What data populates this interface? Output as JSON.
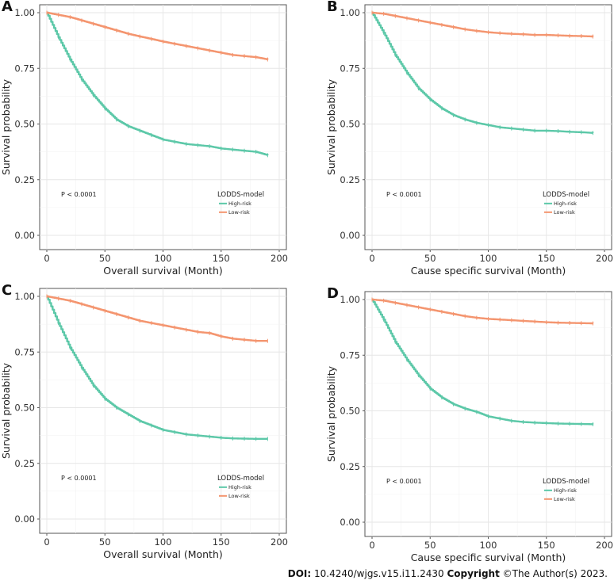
{
  "footer": {
    "doi_label": "DOI:",
    "doi_value": "10.4240/wjgs.v15.i11.2430",
    "copyright_label": "Copyright",
    "copyright_text": "©The Author(s) 2023."
  },
  "colors": {
    "high_risk": "#5CC8A8",
    "low_risk": "#F4956F"
  },
  "chart_data": [
    {
      "panel": "A",
      "type": "line",
      "title": "",
      "xlabel": "Overall survival (Month)",
      "ylabel": "Survival probability",
      "xlim": [
        0,
        200
      ],
      "ylim": [
        0,
        1
      ],
      "xticks": [
        "0",
        "50",
        "100",
        "150",
        "200"
      ],
      "yticks": [
        "0.00",
        "0.25",
        "0.50",
        "0.75",
        "1.00"
      ],
      "p_value": "P < 0.0001",
      "legend_title": "LODDS-model",
      "series": [
        {
          "name": "High-risk",
          "x": [
            0,
            10,
            20,
            30,
            40,
            50,
            60,
            70,
            80,
            90,
            100,
            110,
            120,
            130,
            140,
            150,
            160,
            170,
            180,
            190
          ],
          "values": [
            1.0,
            0.89,
            0.79,
            0.7,
            0.63,
            0.57,
            0.52,
            0.49,
            0.47,
            0.45,
            0.43,
            0.42,
            0.41,
            0.405,
            0.4,
            0.39,
            0.385,
            0.38,
            0.375,
            0.36
          ]
        },
        {
          "name": "Low-risk",
          "x": [
            0,
            10,
            20,
            30,
            40,
            50,
            60,
            70,
            80,
            90,
            100,
            110,
            120,
            130,
            140,
            150,
            160,
            170,
            180,
            190
          ],
          "values": [
            1.0,
            0.99,
            0.98,
            0.965,
            0.95,
            0.935,
            0.92,
            0.905,
            0.893,
            0.882,
            0.87,
            0.86,
            0.85,
            0.84,
            0.83,
            0.82,
            0.81,
            0.805,
            0.8,
            0.79
          ]
        }
      ]
    },
    {
      "panel": "B",
      "type": "line",
      "title": "",
      "xlabel": "Cause specific survival (Month)",
      "ylabel": "Survival probability",
      "xlim": [
        0,
        200
      ],
      "ylim": [
        0,
        1
      ],
      "xticks": [
        "0",
        "50",
        "100",
        "150",
        "200"
      ],
      "yticks": [
        "0.00",
        "0.25",
        "0.50",
        "0.75",
        "1.00"
      ],
      "p_value": "P < 0.0001",
      "legend_title": "LODDS-model",
      "series": [
        {
          "name": "High-risk",
          "x": [
            0,
            10,
            20,
            30,
            40,
            50,
            60,
            70,
            80,
            90,
            100,
            110,
            120,
            130,
            140,
            150,
            160,
            170,
            180,
            190
          ],
          "values": [
            1.0,
            0.91,
            0.81,
            0.73,
            0.66,
            0.61,
            0.57,
            0.54,
            0.52,
            0.505,
            0.495,
            0.485,
            0.48,
            0.475,
            0.47,
            0.47,
            0.468,
            0.465,
            0.463,
            0.46
          ]
        },
        {
          "name": "Low-risk",
          "x": [
            0,
            10,
            20,
            30,
            40,
            50,
            60,
            70,
            80,
            90,
            100,
            110,
            120,
            130,
            140,
            150,
            160,
            170,
            180,
            190
          ],
          "values": [
            1.0,
            0.995,
            0.985,
            0.975,
            0.965,
            0.955,
            0.945,
            0.935,
            0.925,
            0.918,
            0.912,
            0.908,
            0.905,
            0.903,
            0.9,
            0.9,
            0.898,
            0.896,
            0.895,
            0.893
          ]
        }
      ]
    },
    {
      "panel": "C",
      "type": "line",
      "title": "",
      "xlabel": "Overall survival (Month)",
      "ylabel": "Survival probability",
      "xlim": [
        0,
        200
      ],
      "ylim": [
        0,
        1
      ],
      "xticks": [
        "0",
        "50",
        "100",
        "150",
        "200"
      ],
      "yticks": [
        "0.00",
        "0.25",
        "0.50",
        "0.75",
        "1.00"
      ],
      "p_value": "P < 0.0001",
      "legend_title": "LODDS-model",
      "series": [
        {
          "name": "High-risk",
          "x": [
            0,
            10,
            20,
            30,
            40,
            50,
            60,
            70,
            80,
            90,
            100,
            110,
            120,
            130,
            140,
            150,
            160,
            170,
            180,
            190
          ],
          "values": [
            1.0,
            0.88,
            0.77,
            0.68,
            0.6,
            0.54,
            0.5,
            0.47,
            0.44,
            0.42,
            0.4,
            0.39,
            0.38,
            0.375,
            0.37,
            0.365,
            0.362,
            0.361,
            0.36,
            0.36
          ]
        },
        {
          "name": "Low-risk",
          "x": [
            0,
            10,
            20,
            30,
            40,
            50,
            60,
            70,
            80,
            90,
            100,
            110,
            120,
            130,
            140,
            150,
            160,
            170,
            180,
            190
          ],
          "values": [
            1.0,
            0.99,
            0.98,
            0.965,
            0.95,
            0.935,
            0.92,
            0.905,
            0.89,
            0.88,
            0.87,
            0.86,
            0.85,
            0.84,
            0.835,
            0.82,
            0.81,
            0.805,
            0.8,
            0.8
          ]
        }
      ]
    },
    {
      "panel": "D",
      "type": "line",
      "title": "",
      "xlabel": "Cause specific survival (Month)",
      "ylabel": "Survival probability",
      "xlim": [
        0,
        200
      ],
      "ylim": [
        0,
        1
      ],
      "xticks": [
        "0",
        "50",
        "100",
        "150",
        "200"
      ],
      "yticks": [
        "0.00",
        "0.25",
        "0.50",
        "0.75",
        "1.00"
      ],
      "p_value": "P < 0.0001",
      "legend_title": "LODDS-model",
      "series": [
        {
          "name": "High-risk",
          "x": [
            0,
            10,
            20,
            30,
            40,
            50,
            60,
            70,
            80,
            90,
            100,
            110,
            120,
            130,
            140,
            150,
            160,
            170,
            180,
            190
          ],
          "values": [
            1.0,
            0.91,
            0.81,
            0.73,
            0.66,
            0.6,
            0.56,
            0.53,
            0.51,
            0.495,
            0.475,
            0.465,
            0.455,
            0.45,
            0.447,
            0.445,
            0.443,
            0.442,
            0.441,
            0.44
          ]
        },
        {
          "name": "Low-risk",
          "x": [
            0,
            10,
            20,
            30,
            40,
            50,
            60,
            70,
            80,
            90,
            100,
            110,
            120,
            130,
            140,
            150,
            160,
            170,
            180,
            190
          ],
          "values": [
            1.0,
            0.995,
            0.985,
            0.975,
            0.965,
            0.955,
            0.945,
            0.935,
            0.925,
            0.918,
            0.913,
            0.91,
            0.907,
            0.904,
            0.901,
            0.898,
            0.896,
            0.895,
            0.894,
            0.893
          ]
        }
      ]
    }
  ]
}
